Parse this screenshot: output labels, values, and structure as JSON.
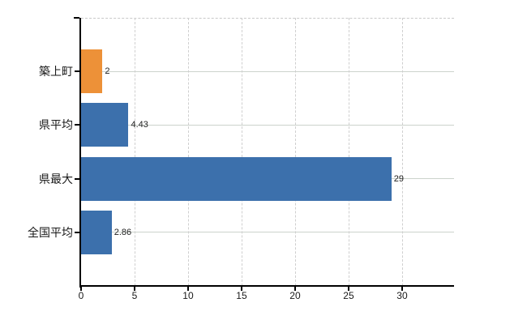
{
  "chart_data": {
    "type": "bar",
    "orientation": "horizontal",
    "title": "",
    "xlabel": "",
    "ylabel": "",
    "categories": [
      "築上町",
      "県平均",
      "県最大",
      "全国平均"
    ],
    "values": [
      2,
      4.43,
      29,
      2.86
    ],
    "value_labels": [
      "2",
      "4.43",
      "29",
      "2.86"
    ],
    "bar_colors": [
      "#ED9138",
      "#3C70AC",
      "#3C70AC",
      "#3C70AC"
    ],
    "x_ticks": [
      0,
      5,
      10,
      15,
      20,
      25,
      30
    ],
    "x_tick_labels": [
      "0",
      "5",
      "10",
      "15",
      "20",
      "25",
      "30"
    ],
    "xlim": [
      0,
      34.85
    ],
    "grid": "on",
    "legend": "none"
  },
  "colors": {
    "background": "#ffffff",
    "axis": "#000000",
    "bar_blue": "#3C70AC",
    "bar_orange": "#ED9138",
    "grid_horizontal": "#ccd3cc",
    "grid_vertical": "#cfcfcf",
    "plot_top_border": "#c9c9c9",
    "text": "#1a1a1a"
  }
}
